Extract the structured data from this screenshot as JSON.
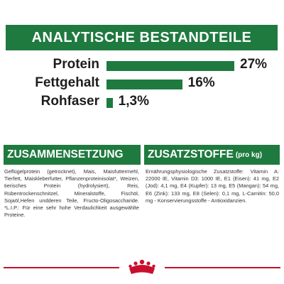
{
  "header": {
    "title": "ANALYTISCHE BESTANDTEILE"
  },
  "chart_data": {
    "type": "bar",
    "categories": [
      "Protein",
      "Fettgehalt",
      "Rohfaser"
    ],
    "values": [
      27,
      16,
      1.3
    ],
    "value_labels": [
      "27%",
      "16%",
      "1,3%"
    ],
    "orientation": "horizontal",
    "title": "ANALYTISCHE BESTANDTEILE"
  },
  "composition": {
    "title": "ZUSAMMENSETZUNG",
    "text": "Geflügelprotein (getrocknet), Mais, Maisfuttermehl, Tierfett, Maiskleberfutter, Pflanzenproteinisolat*, Weizen, tierisches Protein (hydrolysiert), Reis, Rübentrockenschnitzel, Mineralstoffe, Fischöl, Sojaöl,Hefen undderen Teile, Fructo-Oligosaccharide. *L.I.P.: Für eine sehr hohe Verdaulichkeit ausgewählte Proteine."
  },
  "additives": {
    "title": "ZUSATZSTOFFE",
    "title_suffix": "(pro kg)",
    "text": "Ernährungsphysiologische Zusatzstoffe: Vitamin A: 22000 IE, Vitamin D3: 1000 IE, E1 (Eisen): 41 mg, E2 (Jod): 4,1 mg, E4 (Kupfer): 13 mg, E5 (Mangan): 54 mg, E6 (Zink): 133 mg, E8 (Selen): 0,1 mg, L-Carnitin: 50,0 mg - Konservierungsstoffe - Antioxidanzien."
  },
  "colors": {
    "accent": "#1f7a3f",
    "brand_red": "#c8102e",
    "text": "#1d1d1b"
  },
  "logo": {
    "icon": "royal-canin-crown-logo"
  }
}
